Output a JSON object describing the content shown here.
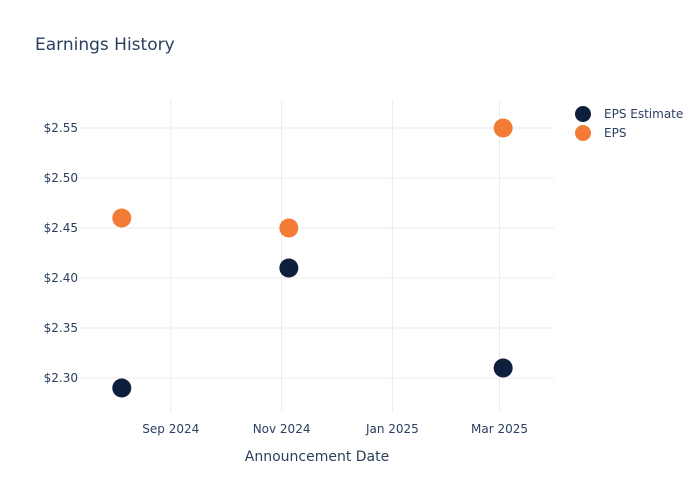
{
  "chart_data": {
    "type": "scatter",
    "title": "Earnings History",
    "xlabel": "Announcement Date",
    "ylabel": "",
    "x_ticks": [
      {
        "date": "2024-09-01",
        "label": "Sep 2024"
      },
      {
        "date": "2024-11-01",
        "label": "Nov 2024"
      },
      {
        "date": "2025-01-01",
        "label": "Jan 2025"
      },
      {
        "date": "2025-03-01",
        "label": "Mar 2025"
      }
    ],
    "y_ticks": [
      {
        "value": 2.3,
        "label": "$2.30"
      },
      {
        "value": 2.35,
        "label": "$2.35"
      },
      {
        "value": 2.4,
        "label": "$2.40"
      },
      {
        "value": 2.45,
        "label": "$2.45"
      },
      {
        "value": 2.5,
        "label": "$2.50"
      },
      {
        "value": 2.55,
        "label": "$2.55"
      }
    ],
    "xlim": [
      "2024-07-13",
      "2025-03-31"
    ],
    "ylim": [
      2.266,
      2.578
    ],
    "grid": true,
    "legend_position": "top-right",
    "series": [
      {
        "name": "EPS Estimate",
        "color": "#0e1e3d",
        "points": [
          {
            "x": "2024-08-05",
            "y": 2.29
          },
          {
            "x": "2024-11-05",
            "y": 2.41
          },
          {
            "x": "2025-03-03",
            "y": 2.31
          }
        ]
      },
      {
        "name": "EPS",
        "color": "#f47b35",
        "points": [
          {
            "x": "2024-08-05",
            "y": 2.46
          },
          {
            "x": "2024-11-05",
            "y": 2.45
          },
          {
            "x": "2025-03-03",
            "y": 2.55
          }
        ]
      }
    ]
  }
}
